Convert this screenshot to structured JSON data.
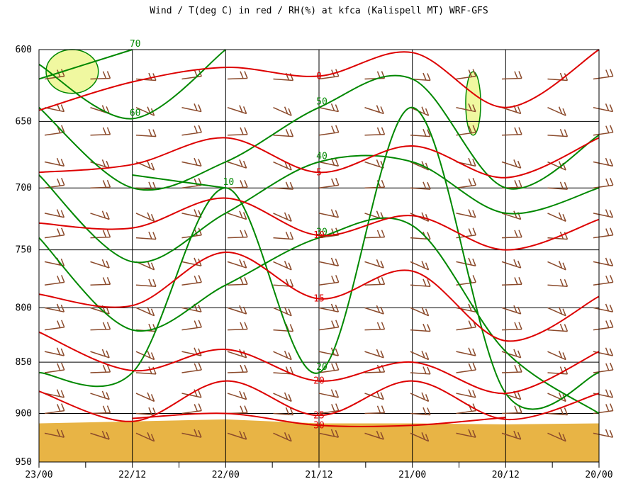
{
  "chart_data": {
    "type": "line",
    "title": "Wind / T(deg C) in red / RH(%) at kfca (Kalispell MT)  WRF-GFS",
    "x_ticks": [
      "23/00",
      "22/12",
      "22/00",
      "21/12",
      "21/00",
      "20/12",
      "20/00"
    ],
    "y_ticks": [
      "600",
      "650",
      "700",
      "750",
      "800",
      "850",
      "900",
      "950"
    ],
    "ylim": [
      950,
      600
    ],
    "y_scale": "log-pressure",
    "grid": true,
    "colors": {
      "temperature": "#dd0000",
      "rh": "#008800",
      "rh_fill": "#f0f8a0",
      "wind": "#8b4a2b",
      "terrain": "#e8b445"
    },
    "temperature_contours": [
      {
        "label": "0",
        "points": [
          [
            "23/00",
            642
          ],
          [
            "22/12",
            622
          ],
          [
            "22/00",
            612
          ],
          [
            "21/12",
            618
          ],
          [
            "21/00",
            602
          ],
          [
            "20/12",
            640
          ],
          [
            "20/00",
            600
          ]
        ]
      },
      {
        "label": "5",
        "points": [
          [
            "23/00",
            688
          ],
          [
            "22/12",
            682
          ],
          [
            "22/00",
            662
          ],
          [
            "21/12",
            688
          ],
          [
            "21/00",
            668
          ],
          [
            "20/12",
            692
          ],
          [
            "20/00",
            662
          ]
        ]
      },
      {
        "label": "10",
        "points": [
          [
            "23/00",
            728
          ],
          [
            "22/12",
            732
          ],
          [
            "22/00",
            708
          ],
          [
            "21/12",
            738
          ],
          [
            "21/00",
            722
          ],
          [
            "20/12",
            750
          ],
          [
            "20/00",
            725
          ]
        ]
      },
      {
        "label": "15",
        "points": [
          [
            "23/00",
            788
          ],
          [
            "22/12",
            798
          ],
          [
            "22/00",
            752
          ],
          [
            "21/12",
            792
          ],
          [
            "21/00",
            768
          ],
          [
            "20/12",
            830
          ],
          [
            "20/00",
            790
          ]
        ]
      },
      {
        "label": "20",
        "points": [
          [
            "23/00",
            822
          ],
          [
            "22/12",
            858
          ],
          [
            "22/00",
            838
          ],
          [
            "21/12",
            868
          ],
          [
            "21/00",
            850
          ],
          [
            "20/12",
            880
          ],
          [
            "20/00",
            840
          ]
        ]
      },
      {
        "label": "25",
        "points": [
          [
            "23/00",
            878
          ],
          [
            "22/12",
            908
          ],
          [
            "22/00",
            868
          ],
          [
            "21/12",
            902
          ],
          [
            "21/00",
            868
          ],
          [
            "20/12",
            906
          ],
          [
            "20/00",
            880
          ]
        ]
      },
      {
        "label": "30",
        "points": [
          [
            "22/12",
            905
          ],
          [
            "22/00",
            900
          ],
          [
            "21/12",
            912
          ],
          [
            "21/00",
            912
          ],
          [
            "20/12",
            904
          ]
        ]
      }
    ],
    "rh_contours": [
      {
        "label": "70",
        "points": [
          [
            "23/00",
            620
          ],
          [
            "22/12",
            600
          ]
        ]
      },
      {
        "label": "60",
        "points": [
          [
            "23/00",
            610
          ],
          [
            "22/12",
            648
          ],
          [
            "22/00",
            600
          ]
        ]
      },
      {
        "label": "50",
        "points": [
          [
            "23/00",
            640
          ],
          [
            "22/12",
            700
          ],
          [
            "22/00",
            680
          ],
          [
            "21/12",
            640
          ],
          [
            "21/00",
            620
          ],
          [
            "20/12",
            700
          ],
          [
            "20/00",
            660
          ]
        ]
      },
      {
        "label": "40",
        "points": [
          [
            "23/00",
            690
          ],
          [
            "22/12",
            760
          ],
          [
            "22/00",
            720
          ],
          [
            "21/12",
            680
          ],
          [
            "21/00",
            680
          ],
          [
            "20/12",
            720
          ],
          [
            "20/00",
            700
          ]
        ]
      },
      {
        "label": "30",
        "points": [
          [
            "23/00",
            740
          ],
          [
            "22/12",
            820
          ],
          [
            "22/00",
            780
          ],
          [
            "21/12",
            740
          ],
          [
            "21/00",
            730
          ],
          [
            "20/12",
            840
          ],
          [
            "20/00",
            900
          ]
        ]
      },
      {
        "label": "20",
        "points": [
          [
            "23/00",
            860
          ],
          [
            "22/12",
            860
          ],
          [
            "22/00",
            700
          ],
          [
            "21/12",
            860
          ],
          [
            "21/00",
            640
          ],
          [
            "20/12",
            880
          ],
          [
            "20/00",
            860
          ]
        ]
      },
      {
        "label": "10",
        "points": [
          [
            "22/12",
            690
          ],
          [
            "22/00",
            700
          ]
        ]
      }
    ],
    "rh_over_70_regions": [
      {
        "x_from": "23/00",
        "x_to": "22/12",
        "p_from": 600,
        "p_to": 630
      },
      {
        "x_from": "21/00",
        "x_to": "20/12",
        "p_from": 615,
        "p_to": 660
      }
    ],
    "terrain_surface_pressure": [
      [
        "23/00",
        910
      ],
      [
        "22/12",
        908
      ],
      [
        "22/00",
        906
      ],
      [
        "21/12",
        910
      ],
      [
        "21/00",
        910
      ],
      [
        "20/12",
        911
      ],
      [
        "20/00",
        910
      ]
    ],
    "wind_levels": [
      620,
      640,
      660,
      680,
      700,
      720,
      740,
      760,
      780,
      800,
      820,
      840,
      860,
      880,
      900,
      920
    ]
  }
}
